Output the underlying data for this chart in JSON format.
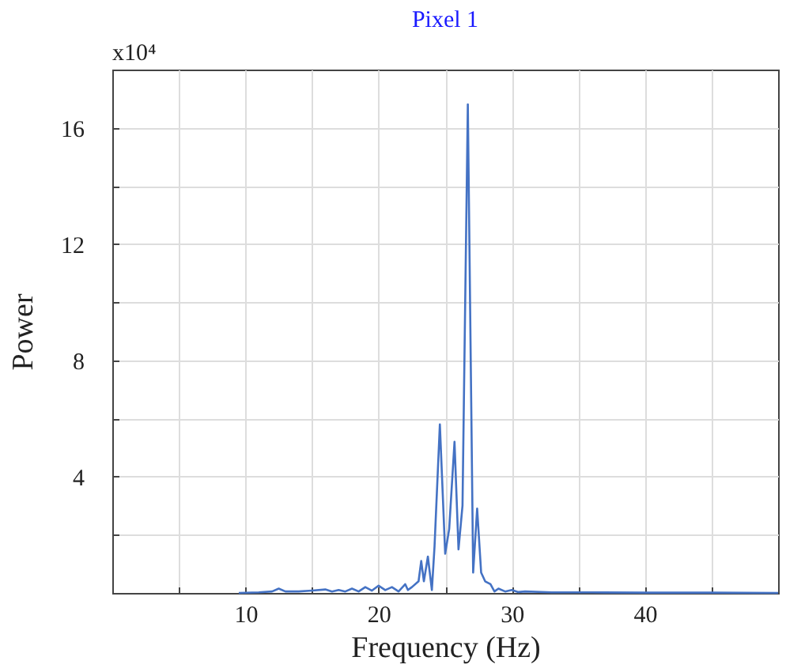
{
  "chart_data": {
    "type": "line",
    "title": "Pixel 1",
    "xlabel": "Frequency (Hz)",
    "ylabel": "Power",
    "annotations": [
      "x10⁴"
    ],
    "series": [
      {
        "color": "#4472c4",
        "x": [
          9.5,
          11,
          12,
          12.5,
          13,
          14,
          15,
          16,
          16.5,
          17,
          17.5,
          18,
          18.5,
          19,
          19.5,
          20,
          20.5,
          21,
          21.5,
          22,
          22.2,
          22.5,
          23,
          23.2,
          23.4,
          23.7,
          24.0,
          24.2,
          24.6,
          25.0,
          25.3,
          25.7,
          26.0,
          26.3,
          26.7,
          27.1,
          27.4,
          27.7,
          28.0,
          28.4,
          28.7,
          29.0,
          29.5,
          30,
          30.5,
          31,
          33,
          36,
          40,
          45,
          50
        ],
        "values": [
          0,
          0.02,
          0.05,
          0.15,
          0.05,
          0.05,
          0.08,
          0.12,
          0.05,
          0.1,
          0.05,
          0.15,
          0.05,
          0.2,
          0.08,
          0.25,
          0.1,
          0.2,
          0.05,
          0.3,
          0.1,
          0.2,
          0.4,
          1.1,
          0.4,
          1.25,
          0.1,
          1.6,
          5.8,
          1.35,
          2.2,
          5.2,
          1.5,
          3,
          16.8,
          0.7,
          2.9,
          0.7,
          0.4,
          0.3,
          0.05,
          0.15,
          0.05,
          0.1,
          0.03,
          0.05,
          0.02,
          0.02,
          0.01,
          0.01,
          0
        ]
      }
    ],
    "xlim": [
      0,
      50
    ],
    "xticks": [
      {
        "value": 5,
        "label": null
      },
      10,
      {
        "value": 15,
        "label": null
      },
      20,
      {
        "value": 25,
        "label": null
      },
      30,
      {
        "value": 35,
        "label": null
      },
      40,
      {
        "value": 45,
        "label": null
      }
    ],
    "ylim": [
      0,
      18
    ],
    "yticks": [
      {
        "value": 2,
        "label": null
      },
      4,
      {
        "value": 6,
        "label": null
      },
      8,
      {
        "value": 10,
        "label": null
      },
      12,
      {
        "value": 14,
        "label": null
      },
      16
    ],
    "grid": true,
    "marker": "none",
    "line_style": "solid"
  }
}
